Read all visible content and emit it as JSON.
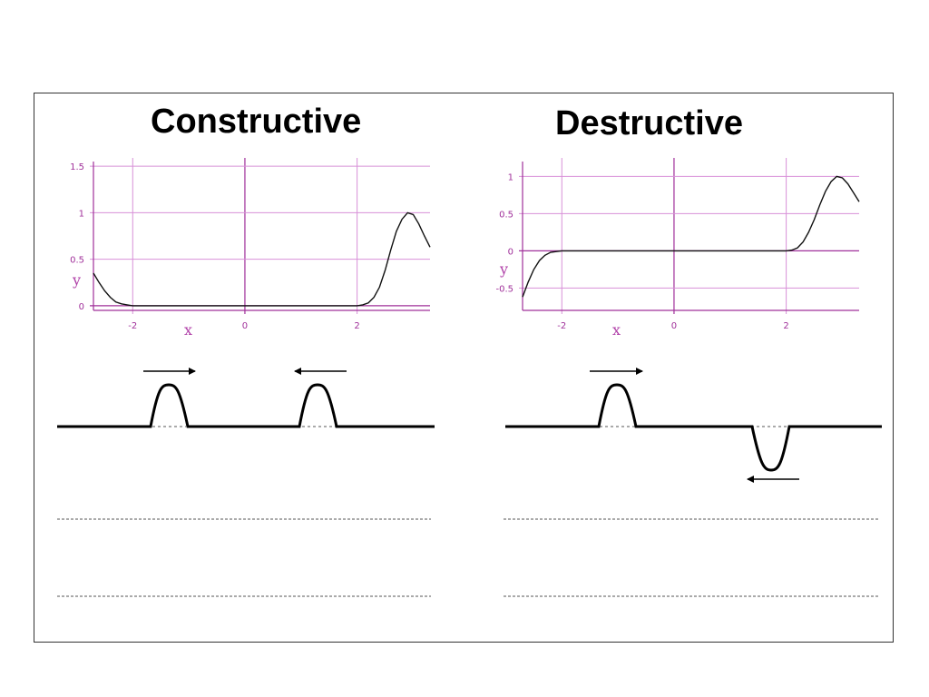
{
  "panels": {
    "constructive": {
      "title": "Constructive"
    },
    "destructive": {
      "title": "Destructive"
    }
  },
  "colors": {
    "grid": "#d890d8",
    "axis": "#a0309a",
    "label": "#a0309a",
    "curve": "#111111",
    "frame": "#333333"
  },
  "chart_data": [
    {
      "type": "line",
      "xlabel": "x",
      "ylabel": "y",
      "xlim": [
        -2.7,
        3.3
      ],
      "ylim": [
        -0.05,
        1.55
      ],
      "x_ticks": [
        "-2",
        "0",
        "2"
      ],
      "y_ticks": [
        "0",
        "0.5",
        "1",
        "1.5"
      ],
      "grid": true,
      "series": [
        {
          "x": [
            -2.7,
            -2.6,
            -2.5,
            -2.4,
            -2.3,
            -2.2,
            -2.1,
            -2.0,
            2.0,
            2.1,
            2.2,
            2.3,
            2.4,
            2.5,
            2.6,
            2.7,
            2.8,
            2.9,
            3.0,
            3.1,
            3.2,
            3.3
          ],
          "y": [
            0.35,
            0.25,
            0.16,
            0.09,
            0.04,
            0.02,
            0.01,
            0.0,
            0.0,
            0.01,
            0.03,
            0.09,
            0.2,
            0.38,
            0.6,
            0.8,
            0.93,
            1.0,
            0.98,
            0.88,
            0.75,
            0.63
          ]
        }
      ]
    },
    {
      "type": "line",
      "xlabel": "x",
      "ylabel": "y",
      "xlim": [
        -2.7,
        3.3
      ],
      "ylim": [
        -0.8,
        1.2
      ],
      "x_ticks": [
        "-2",
        "0",
        "2"
      ],
      "y_ticks": [
        "-0.5",
        "0",
        "0.5",
        "1"
      ],
      "grid": true,
      "series": [
        {
          "x": [
            -2.7,
            -2.6,
            -2.5,
            -2.4,
            -2.3,
            -2.2,
            -2.1,
            -2.0,
            2.0,
            2.1,
            2.2,
            2.3,
            2.4,
            2.5,
            2.6,
            2.7,
            2.8,
            2.9,
            3.0,
            3.1,
            3.2,
            3.3
          ],
          "y": [
            -0.62,
            -0.42,
            -0.25,
            -0.13,
            -0.06,
            -0.02,
            -0.01,
            0.0,
            0.0,
            0.01,
            0.04,
            0.12,
            0.25,
            0.42,
            0.62,
            0.8,
            0.93,
            1.0,
            0.98,
            0.9,
            0.78,
            0.66
          ]
        }
      ]
    }
  ]
}
